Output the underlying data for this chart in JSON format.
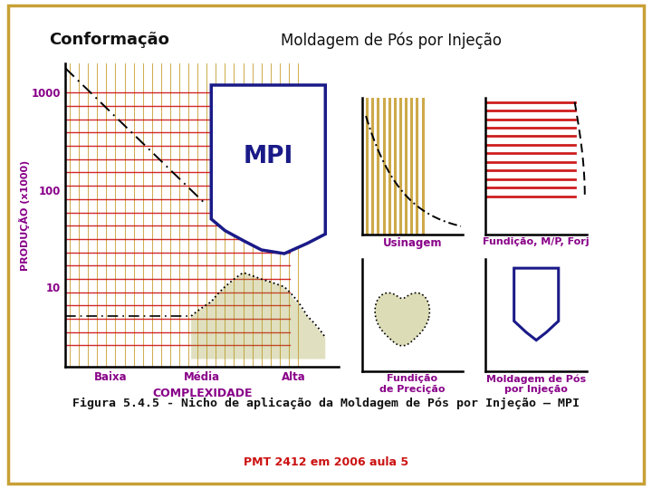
{
  "title_left": "Conformação",
  "title_right": "Moldagem de Pós por Injeção",
  "ylabel": "PRODUÇÃO (x1000)",
  "xlabel": "COMPLEXIDADE",
  "x_labels": [
    "Baixa",
    "Média",
    "Alta"
  ],
  "caption": "Figura 5.4.5 - Nicho de aplicação da Moldagem de Pós por Injeção – MPI",
  "footer": "PMT 2412 em 2006 aula 5",
  "mpi_label": "MPI",
  "border_color": "#c8a035",
  "title_color_left": "#111111",
  "title_color_right": "#111111",
  "purple_color": "#880088",
  "navy_color": "#1a1a88",
  "red_color": "#cc1111",
  "tan_color": "#c8a035",
  "olive_color": "#9b9b30",
  "footer_color": "#cc1111",
  "small_label_color": "#880088",
  "caption_color": "#111111"
}
